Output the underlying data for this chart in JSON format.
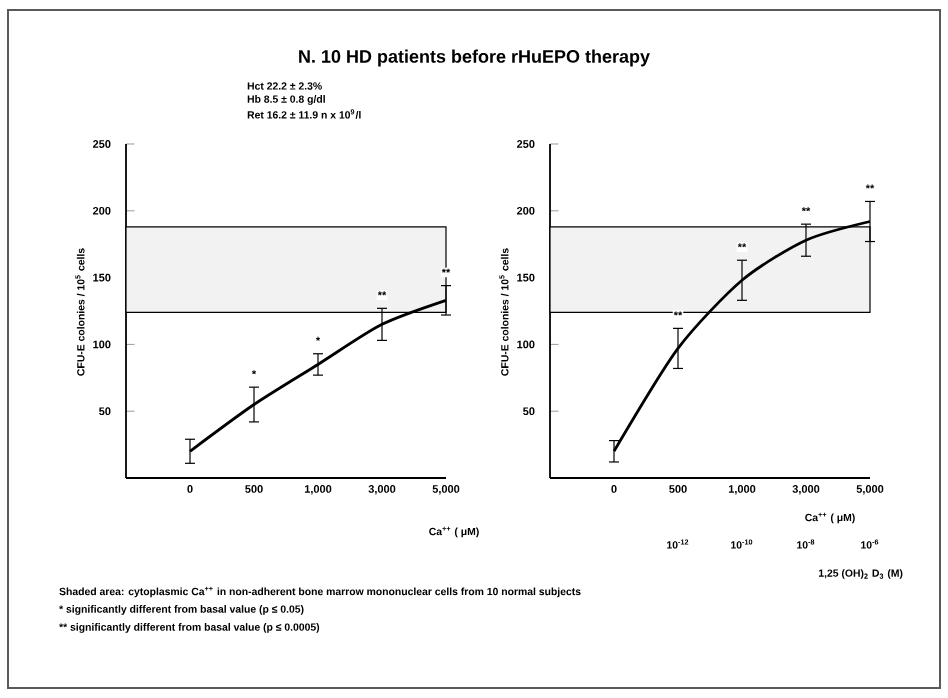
{
  "chart_data": [
    {
      "type": "line",
      "title": "N. 10 HD patients before rHuEPO therapy",
      "categories": [
        "0",
        "500",
        "1,000",
        "3,000",
        "5,000"
      ],
      "values": [
        20,
        55,
        85,
        115,
        133
      ],
      "errors": [
        9,
        13,
        8,
        12,
        11
      ],
      "color": "#000000",
      "ylim": [
        0,
        250
      ],
      "yticks": [
        50,
        100,
        150,
        200,
        250
      ],
      "ylabel": "CFU-E colonies / 10$^{5}$ cells",
      "xlabel": "Ca$^{++}$ ( μM)",
      "bands": [
        {
          "axis": "y",
          "from": 124,
          "to": 188,
          "color": "#f2f2f2"
        }
      ],
      "annotations": [
        "Hct 22.2 ± 2.3%",
        "Hb 8.5 ± 0.8 g/dl",
        "Ret 16.2 ± 11.9 n x 10$^{9}$/l",
        "Shaded area: cytoplasmic Ca$^{++}$ in non-adherent bone marrow mononuclear cells from 10 normal subjects",
        "* significantly different from basal value (p ≤ 0.05)",
        "** significantly different from basal value (p ≤ 0.0005)",
        {
          "text": "*",
          "x": "500",
          "y": 55
        },
        {
          "text": "*",
          "x": "1,000",
          "y": 85
        },
        {
          "text": "**",
          "x": "3,000",
          "y": 115
        },
        {
          "text": "**",
          "x": "5,000",
          "y": 133
        }
      ]
    },
    {
      "type": "line",
      "categories": [
        "0",
        "500",
        "1,000",
        "3,000",
        "5,000"
      ],
      "values": [
        20,
        97,
        148,
        178,
        192
      ],
      "errors": [
        8,
        15,
        15,
        12,
        15
      ],
      "color": "#000000",
      "ylim": [
        0,
        250
      ],
      "yticks": [
        50,
        100,
        150,
        200,
        250
      ],
      "ylabel": "CFU-E colonies / 10$^{5}$ cells",
      "xlabel": "Ca$^{++}$ ( μM)",
      "bands": [
        {
          "axis": "y",
          "from": 124,
          "to": 188,
          "color": "#f2f2f2"
        }
      ],
      "annotations": [
        {
          "text": "**",
          "x": "500",
          "y": 97
        },
        {
          "text": "**",
          "x": "1,000",
          "y": 148
        },
        {
          "text": "**",
          "x": "3,000",
          "y": 178
        },
        {
          "text": "**",
          "x": "5,000",
          "y": 192
        },
        "10$^{-12}$",
        "10$^{-10}$",
        "10$^{-8}$",
        "10$^{-6}$",
        "1,25 (OH)$_{2}$ D$_{3}$ (M)"
      ]
    }
  ]
}
